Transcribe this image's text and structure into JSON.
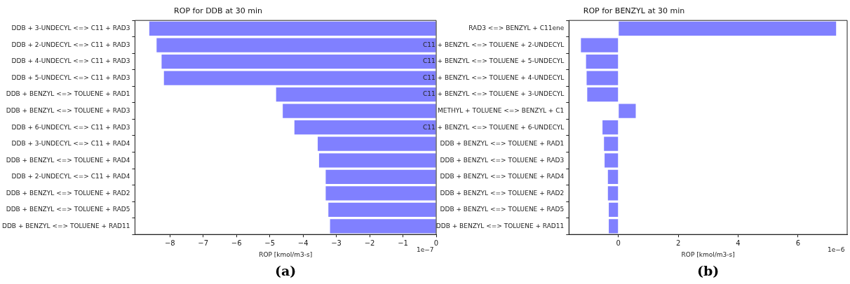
{
  "chart_data": [
    {
      "type": "bar",
      "orientation": "horizontal",
      "title": "ROP for DDB at 30 min",
      "xlabel": "ROP [kmol/m3-s]",
      "categories": [
        "DDB + 3-UNDECYL <=> C11 + RAD3",
        "DDB + 2-UNDECYL <=> C11 + RAD3",
        "DDB + 4-UNDECYL <=> C11 + RAD3",
        "DDB + 5-UNDECYL <=> C11 + RAD3",
        "DDB + BENZYL <=> TOLUENE + RAD1",
        "DDB + BENZYL <=> TOLUENE + RAD3",
        "DDB + 6-UNDECYL <=> C11 + RAD3",
        "DDB + 3-UNDECYL <=> C11 + RAD4",
        "DDB + BENZYL <=> TOLUENE + RAD4",
        "DDB + 2-UNDECYL <=> C11 + RAD4",
        "DDB + BENZYL <=> TOLUENE + RAD2",
        "DDB + BENZYL <=> TOLUENE + RAD5",
        "DDB + BENZYL <=> TOLUENE + RAD11"
      ],
      "values": [
        -8.62,
        -8.4,
        -8.25,
        -8.18,
        -4.81,
        -4.61,
        -4.26,
        -3.56,
        -3.52,
        -3.32,
        -3.32,
        -3.24,
        -3.19
      ],
      "color": "#8080ff",
      "xlim": [
        -9.05,
        0
      ],
      "xticks": [
        -8,
        -7,
        -6,
        -5,
        -4,
        -3,
        -2,
        -1,
        0
      ],
      "grid": false,
      "legend": false,
      "annotations": [
        "1e−7",
        "(a)"
      ]
    },
    {
      "type": "bar",
      "orientation": "horizontal",
      "title": "ROP for BENZYL at 30 min",
      "xlabel": "ROP [kmol/m3-s]",
      "categories": [
        "RAD3 <=> BENZYL + C11ene",
        "C11 + BENZYL <=> TOLUENE + 2-UNDECYL",
        "C11 + BENZYL <=> TOLUENE + 5-UNDECYL",
        "C11 + BENZYL <=> TOLUENE + 4-UNDECYL",
        "C11 + BENZYL <=> TOLUENE + 3-UNDECYL",
        "METHYL + TOLUENE <=> BENZYL + C1",
        "C11 + BENZYL <=> TOLUENE + 6-UNDECYL",
        "DDB + BENZYL <=> TOLUENE + RAD1",
        "DDB + BENZYL <=> TOLUENE + RAD3",
        "DDB + BENZYL <=> TOLUENE + RAD4",
        "DDB + BENZYL <=> TOLUENE + RAD2",
        "DDB + BENZYL <=> TOLUENE + RAD5",
        "DDB + BENZYL <=> TOLUENE + RAD11"
      ],
      "values": [
        7.27,
        -1.25,
        -1.08,
        -1.06,
        -1.04,
        0.58,
        -0.53,
        -0.48,
        -0.46,
        -0.35,
        -0.35,
        -0.32,
        -0.32
      ],
      "color": "#8080ff",
      "xlim": [
        -1.65,
        7.64
      ],
      "xticks": [
        0,
        2,
        4,
        6
      ],
      "grid": false,
      "legend": false,
      "annotations": [
        "1e−6",
        "(b)"
      ]
    }
  ]
}
